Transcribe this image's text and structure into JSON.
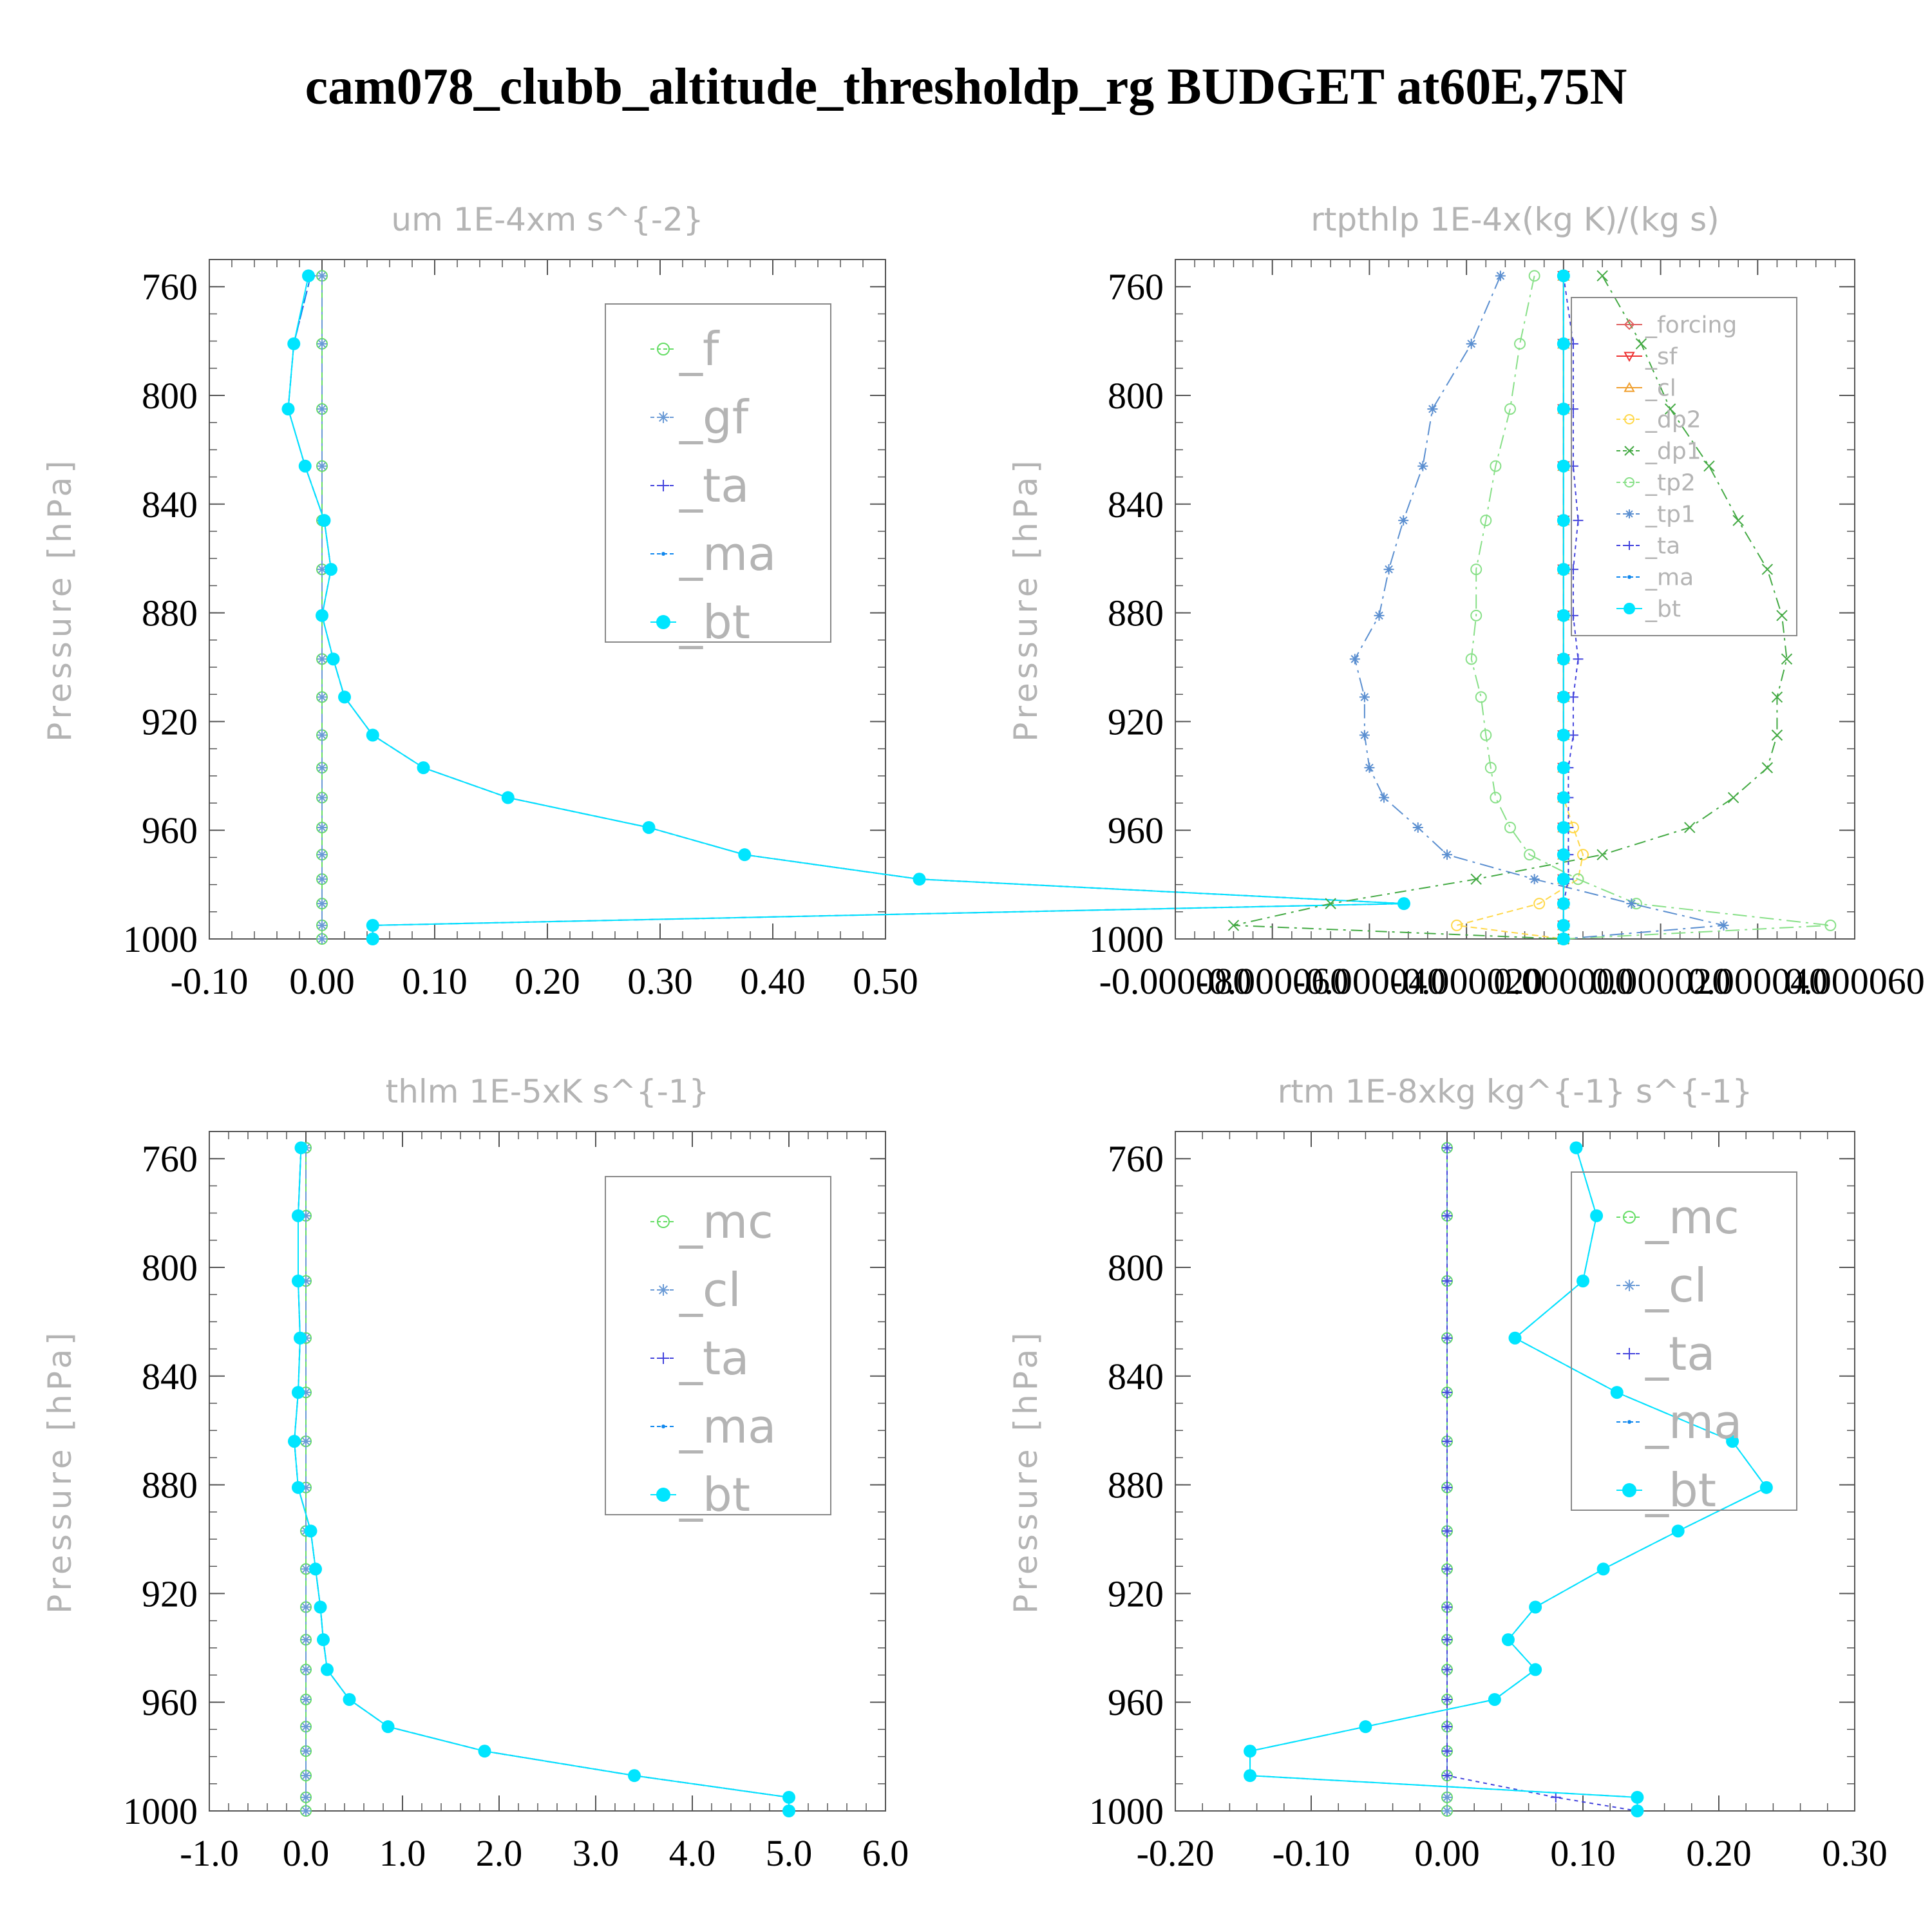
{
  "title": "cam078_clubb_altitude_thresholdp_rg  BUDGET at60E,75N",
  "colors": {
    "f": "#66dd66",
    "gf": "#6b9bd6",
    "ta": "#4444dd",
    "ma": "#1188ee",
    "bt": "#00e5ff",
    "forcing": "#e06060",
    "sf": "#ee3333",
    "cl_orange": "#f0a030",
    "dp2": "#ffd84a",
    "dp1": "#44aa44",
    "tp2": "#88e088",
    "tp1": "#5b8fd0",
    "mc": "#66dd66",
    "cl": "#6b9bd6"
  },
  "chart_data": [
    {
      "type": "line",
      "title": "um  1E-4xm s^{-2}",
      "ylabel": "Pressure [hPa]",
      "xlim": [
        -0.1,
        0.5
      ],
      "ylim": [
        1000,
        750
      ],
      "xticks": [
        "-0.10",
        "0.00",
        "0.10",
        "0.20",
        "0.30",
        "0.40",
        "0.50"
      ],
      "yticks": [
        "760",
        "800",
        "840",
        "880",
        "920",
        "960",
        "1000"
      ],
      "legend": "top-right",
      "levels": [
        756,
        781,
        805,
        826,
        846,
        864,
        881,
        897,
        911,
        925,
        937,
        948,
        959,
        969,
        978,
        987,
        995,
        1000
      ],
      "series": [
        {
          "name": "_f",
          "values": [
            0,
            0,
            0,
            0,
            0,
            0,
            0,
            0,
            0,
            0,
            0,
            0,
            0,
            0,
            0,
            0,
            0,
            0
          ]
        },
        {
          "name": "_gf",
          "values": [
            0,
            0,
            0,
            0,
            0,
            0,
            0,
            0,
            0,
            0,
            0,
            0,
            0,
            0,
            0,
            0,
            0,
            0
          ]
        },
        {
          "name": "_ta",
          "values": [
            -0.01,
            -0.025,
            -0.03,
            -0.015,
            0.002,
            0.008,
            0.0,
            0.01,
            0.02,
            0.045,
            0.09,
            0.165,
            0.29,
            0.375,
            0.53,
            0.96,
            0.045,
            0.045
          ]
        },
        {
          "name": "_ma",
          "values": [
            -0.01,
            -0.025,
            -0.03,
            -0.015,
            0.002,
            0.008,
            0.0,
            0.01,
            0.02,
            0.045,
            0.09,
            0.165,
            0.29,
            0.375,
            0.53,
            0.96,
            0.045,
            0.045
          ]
        },
        {
          "name": "_bt",
          "values": [
            -0.012,
            -0.025,
            -0.03,
            -0.015,
            0.002,
            0.008,
            0.0,
            0.01,
            0.02,
            0.045,
            0.09,
            0.165,
            0.29,
            0.375,
            0.53,
            0.96,
            0.045,
            0.045
          ]
        }
      ]
    },
    {
      "type": "line",
      "title": "rtpthlp  1E-4x(kg K)/(kg s)",
      "ylabel": "Pressure [hPa]",
      "xlim": [
        -8e-05,
        6e-05
      ],
      "ylim": [
        1000,
        750
      ],
      "xticks": [
        "-0.000080",
        "-0.000060",
        "-0.000040",
        "-0.000020",
        "0.000000",
        "0.000020",
        "0.000040",
        "0.000060"
      ],
      "yticks": [
        "760",
        "800",
        "840",
        "880",
        "920",
        "960",
        "1000"
      ],
      "legend": "top-right",
      "levels": [
        756,
        781,
        805,
        826,
        846,
        864,
        881,
        897,
        911,
        925,
        937,
        948,
        959,
        969,
        978,
        987,
        995,
        1000
      ],
      "series": [
        {
          "name": "_forcing",
          "values": [
            0,
            0,
            0,
            0,
            0,
            0,
            0,
            0,
            0,
            0,
            0,
            0,
            0,
            0,
            0,
            0,
            0,
            0
          ]
        },
        {
          "name": "_sf",
          "values": [
            0,
            0,
            0,
            0,
            0,
            0,
            0,
            0,
            0,
            0,
            0,
            0,
            0,
            0,
            0,
            0,
            0,
            0
          ]
        },
        {
          "name": "_cl",
          "values": [
            0,
            0,
            0,
            0,
            0,
            0,
            0,
            0,
            0,
            0,
            0,
            0,
            0,
            0,
            0,
            0,
            0,
            0
          ]
        },
        {
          "name": "_dp2",
          "values": [
            0,
            0,
            0,
            0,
            0,
            0,
            0,
            0,
            0,
            0,
            0,
            0,
            2e-06,
            4e-06,
            3e-06,
            -5e-06,
            -2.2e-05,
            0
          ]
        },
        {
          "name": "_dp1",
          "values": [
            8e-06,
            1.6e-05,
            2.2e-05,
            3e-05,
            3.6e-05,
            4.2e-05,
            4.5e-05,
            4.6e-05,
            4.4e-05,
            4.4e-05,
            4.2e-05,
            3.5e-05,
            2.6e-05,
            8e-06,
            -1.8e-05,
            -4.8e-05,
            -6.8e-05,
            0
          ]
        },
        {
          "name": "_tp2",
          "values": [
            -6e-06,
            -9e-06,
            -1.1e-05,
            -1.4e-05,
            -1.6e-05,
            -1.8e-05,
            -1.8e-05,
            -1.9e-05,
            -1.7e-05,
            -1.6e-05,
            -1.5e-05,
            -1.4e-05,
            -1.1e-05,
            -7e-06,
            3e-06,
            1.5e-05,
            5.5e-05,
            0
          ]
        },
        {
          "name": "_tp1",
          "values": [
            -1.3e-05,
            -1.9e-05,
            -2.7e-05,
            -2.9e-05,
            -3.3e-05,
            -3.6e-05,
            -3.8e-05,
            -4.3e-05,
            -4.1e-05,
            -4.1e-05,
            -4e-05,
            -3.7e-05,
            -3e-05,
            -2.4e-05,
            -6e-06,
            1.4e-05,
            3.3e-05,
            0
          ]
        },
        {
          "name": "_ta",
          "values": [
            0,
            2e-06,
            2e-06,
            2e-06,
            3e-06,
            2e-06,
            2e-06,
            3e-06,
            2e-06,
            2e-06,
            1e-06,
            1e-06,
            1e-06,
            1e-06,
            1e-06,
            0,
            0,
            0
          ]
        },
        {
          "name": "_ma",
          "values": [
            0,
            0,
            0,
            0,
            0,
            0,
            0,
            0,
            0,
            0,
            0,
            0,
            0,
            0,
            0,
            0,
            0,
            0
          ]
        },
        {
          "name": "_bt",
          "values": [
            0,
            0,
            0,
            0,
            0,
            0,
            0,
            0,
            0,
            0,
            0,
            0,
            0,
            0,
            0,
            0,
            0,
            0
          ]
        }
      ]
    },
    {
      "type": "line",
      "title": "thlm  1E-5xK s^{-1}",
      "ylabel": "Pressure [hPa]",
      "xlim": [
        -1.0,
        6.0
      ],
      "ylim": [
        1000,
        750
      ],
      "xticks": [
        "-1.0",
        "0.0",
        "1.0",
        "2.0",
        "3.0",
        "4.0",
        "5.0",
        "6.0"
      ],
      "yticks": [
        "760",
        "800",
        "840",
        "880",
        "920",
        "960",
        "1000"
      ],
      "legend": "top-right",
      "levels": [
        756,
        781,
        805,
        826,
        846,
        864,
        881,
        897,
        911,
        925,
        937,
        948,
        959,
        969,
        978,
        987,
        995,
        1000
      ],
      "series": [
        {
          "name": "_mc",
          "values": [
            0,
            0,
            0,
            0,
            0,
            0,
            0,
            0,
            0,
            0,
            0,
            0,
            0,
            0,
            0,
            0,
            0,
            0
          ]
        },
        {
          "name": "_cl",
          "values": [
            0,
            0,
            0,
            0,
            0,
            0,
            0,
            0,
            0,
            0,
            0,
            0,
            0,
            0,
            0,
            0,
            0,
            0
          ]
        },
        {
          "name": "_ta",
          "values": [
            -0.05,
            -0.08,
            -0.08,
            -0.06,
            -0.08,
            -0.12,
            -0.08,
            0.05,
            0.1,
            0.15,
            0.18,
            0.22,
            0.45,
            0.85,
            1.85,
            3.4,
            5.0,
            5.0
          ]
        },
        {
          "name": "_ma",
          "values": [
            -0.05,
            -0.08,
            -0.08,
            -0.06,
            -0.08,
            -0.12,
            -0.08,
            0.05,
            0.1,
            0.15,
            0.18,
            0.22,
            0.45,
            0.85,
            1.85,
            3.4,
            5.0,
            5.0
          ]
        },
        {
          "name": "_bt",
          "values": [
            -0.05,
            -0.08,
            -0.08,
            -0.06,
            -0.08,
            -0.12,
            -0.08,
            0.05,
            0.1,
            0.15,
            0.18,
            0.22,
            0.45,
            0.85,
            1.85,
            3.4,
            5.0,
            5.0
          ]
        }
      ]
    },
    {
      "type": "line",
      "title": "rtm  1E-8xkg kg^{-1} s^{-1}",
      "ylabel": "Pressure [hPa]",
      "xlim": [
        -0.2,
        0.3
      ],
      "ylim": [
        1000,
        750
      ],
      "xticks": [
        "-0.20",
        "-0.10",
        "0.00",
        "0.10",
        "0.20",
        "0.30"
      ],
      "yticks": [
        "760",
        "800",
        "840",
        "880",
        "920",
        "960",
        "1000"
      ],
      "legend": "top-right",
      "levels": [
        756,
        781,
        805,
        826,
        846,
        864,
        881,
        897,
        911,
        925,
        937,
        948,
        959,
        969,
        978,
        987,
        995,
        1000
      ],
      "series": [
        {
          "name": "_mc",
          "values": [
            0,
            0,
            0,
            0,
            0,
            0,
            0,
            0,
            0,
            0,
            0,
            0,
            0,
            0,
            0,
            0,
            0,
            0
          ]
        },
        {
          "name": "_cl",
          "values": [
            0,
            0,
            0,
            0,
            0,
            0,
            0,
            0,
            0,
            0,
            0,
            0,
            0,
            0,
            0,
            0,
            0,
            0
          ]
        },
        {
          "name": "_ta",
          "values": [
            0,
            0,
            0,
            0,
            0,
            0,
            0,
            0,
            0,
            0,
            0,
            0,
            0,
            0,
            0,
            0,
            0.08,
            0.14
          ]
        },
        {
          "name": "_ma",
          "values": [
            0.095,
            0.11,
            0.1,
            0.05,
            0.125,
            0.21,
            0.235,
            0.17,
            0.115,
            0.065,
            0.045,
            0.065,
            0.035,
            -0.06,
            -0.145,
            -0.145,
            0.14,
            0.14
          ]
        },
        {
          "name": "_bt",
          "values": [
            0.095,
            0.11,
            0.1,
            0.05,
            0.125,
            0.21,
            0.235,
            0.17,
            0.115,
            0.065,
            0.045,
            0.065,
            0.035,
            -0.06,
            -0.145,
            -0.145,
            0.14,
            0.14
          ]
        }
      ]
    }
  ]
}
